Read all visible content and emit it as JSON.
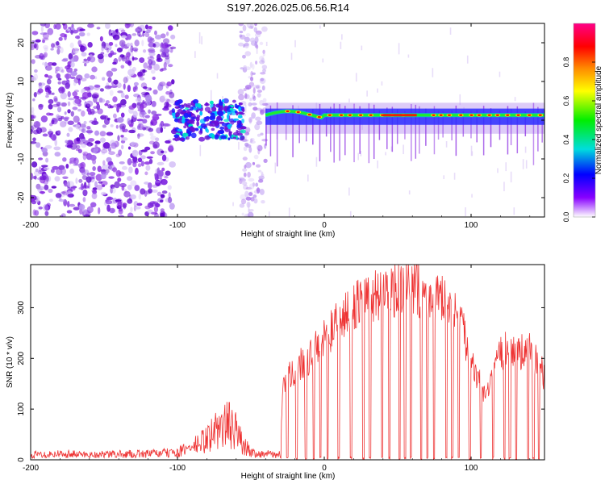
{
  "title": "S197.2026.025.06.56.R14",
  "chart_data": [
    {
      "type": "heatmap",
      "title": "S197.2026.025.06.56.R14",
      "xlabel": "Height of straight line (km)",
      "ylabel": "Frequency (Hz)",
      "xlim": [
        -200,
        150
      ],
      "ylim": [
        -25,
        25
      ],
      "xticks": [
        -200,
        -100,
        0,
        100
      ],
      "yticks": [
        -20,
        -10,
        0,
        10,
        20
      ],
      "colorbar": {
        "label": "Normalized spectral amplitude",
        "range": [
          0,
          1
        ],
        "ticks": [
          0.0,
          0.2,
          0.4,
          0.6,
          0.8
        ],
        "colors": [
          "#ffffff",
          "#8800ff",
          "#0000ff",
          "#00dddd",
          "#00ee00",
          "#ffff00",
          "#ff8800",
          "#ff0000",
          "#ff0088"
        ]
      },
      "regions": [
        {
          "x": [
            -200,
            -103
          ],
          "freq": [
            -25,
            25
          ],
          "amplitude": 0.15,
          "note": "broadband noise"
        },
        {
          "x": [
            -103,
            -55
          ],
          "freq": [
            -5,
            5
          ],
          "amplitude": 0.3,
          "note": "weak signal cluster"
        },
        {
          "x": [
            -57,
            -40
          ],
          "freq": [
            -25,
            25
          ],
          "amplitude": 0.1,
          "note": "broadband noise"
        },
        {
          "x": [
            -40,
            150
          ],
          "freq": [
            -3,
            5
          ],
          "amplitude": 0.85,
          "note": "carrier line near 1 Hz"
        }
      ]
    },
    {
      "type": "line",
      "xlabel": "Height of straight line (km)",
      "ylabel": "SNR (10 * v/v)",
      "xlim": [
        -200,
        150
      ],
      "ylim": [
        0,
        385
      ],
      "xticks": [
        -200,
        -100,
        0,
        100
      ],
      "yticks": [
        0,
        100,
        200,
        300
      ],
      "series": [
        {
          "name": "SNR",
          "color": "#ee3333",
          "x": [
            -200,
            -180,
            -160,
            -140,
            -120,
            -100,
            -90,
            -80,
            -75,
            -70,
            -65,
            -60,
            -55,
            -50,
            -45,
            -30,
            -28,
            -20,
            -10,
            0,
            10,
            20,
            30,
            40,
            50,
            60,
            70,
            80,
            90,
            95,
            100,
            105,
            110,
            115,
            120,
            125,
            130,
            140,
            150
          ],
          "values": [
            10,
            12,
            10,
            11,
            12,
            14,
            25,
            40,
            55,
            65,
            70,
            55,
            30,
            15,
            12,
            10,
            150,
            180,
            200,
            240,
            270,
            300,
            320,
            330,
            335,
            345,
            330,
            310,
            280,
            250,
            190,
            160,
            120,
            160,
            210,
            220,
            210,
            215,
            165
          ]
        }
      ]
    }
  ]
}
